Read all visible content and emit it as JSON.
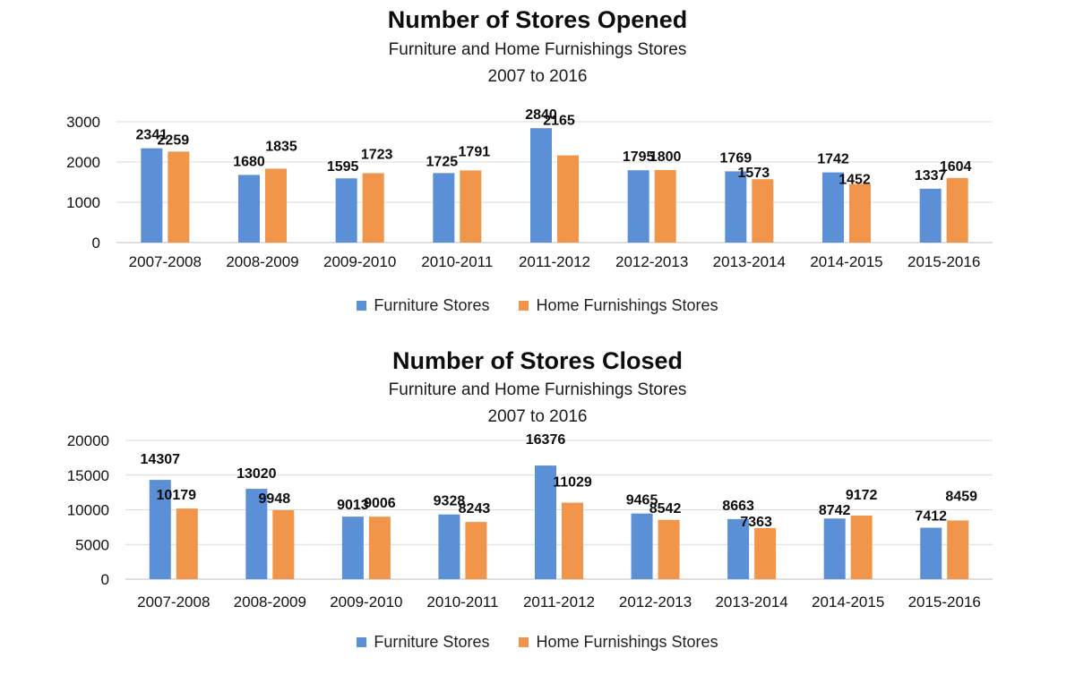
{
  "colors": {
    "furniture": "#5b8fd6",
    "home": "#f0954a",
    "grid": "#d9d9d9",
    "axis": "#bfbfbf"
  },
  "legend": {
    "furniture": "Furniture Stores",
    "home": "Home Furnishings Stores"
  },
  "chart_data": [
    {
      "type": "bar",
      "title": "Number of Stores Opened",
      "subtitle_1": "Furniture and Home Furnishings Stores",
      "subtitle_2": "2007 to 2016",
      "categories": [
        "2007-2008",
        "2008-2009",
        "2009-2010",
        "2010-2011",
        "2011-2012",
        "2012-2013",
        "2013-2014",
        "2014-2015",
        "2015-2016"
      ],
      "series": [
        {
          "name": "Furniture Stores",
          "values": [
            2341,
            1680,
            1595,
            1725,
            2840,
            1795,
            1769,
            1742,
            1337
          ]
        },
        {
          "name": "Home Furnishings Stores",
          "values": [
            2259,
            1835,
            1723,
            1791,
            2165,
            1800,
            1573,
            1452,
            1604
          ]
        }
      ],
      "ylim": [
        0,
        3000
      ],
      "yticks": [
        "0",
        "1000",
        "2000",
        "3000"
      ],
      "grid": true,
      "legend": "bottom"
    },
    {
      "type": "bar",
      "title": "Number of Stores Closed",
      "subtitle_1": "Furniture and Home Furnishings Stores",
      "subtitle_2": "2007 to 2016",
      "categories": [
        "2007-2008",
        "2008-2009",
        "2009-2010",
        "2010-2011",
        "2011-2012",
        "2012-2013",
        "2013-2014",
        "2014-2015",
        "2015-2016"
      ],
      "series": [
        {
          "name": "Furniture Stores",
          "values": [
            14307,
            13020,
            9013,
            9328,
            16376,
            9465,
            8663,
            8742,
            7412
          ]
        },
        {
          "name": "Home Furnishings Stores",
          "values": [
            10179,
            9948,
            9006,
            8243,
            11029,
            8542,
            7363,
            9172,
            8459
          ]
        }
      ],
      "ylim": [
        0,
        20000
      ],
      "yticks": [
        "0",
        "5000",
        "10000",
        "15000",
        "20000"
      ],
      "grid": true,
      "legend": "bottom"
    }
  ]
}
